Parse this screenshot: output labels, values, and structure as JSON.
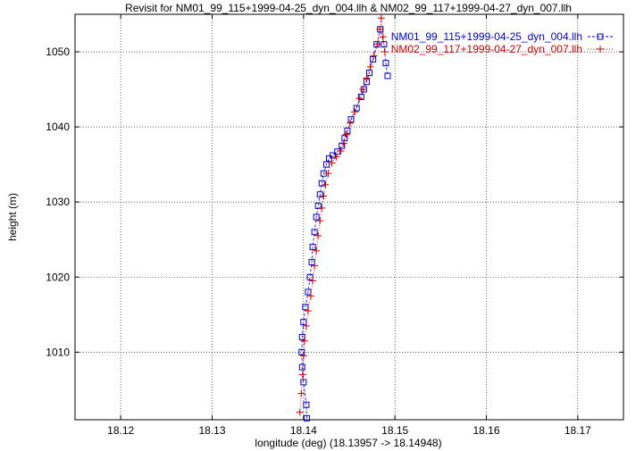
{
  "chart_data": {
    "type": "scatter",
    "title": "Revisit for NM01_99_115+1999-04-25_dyn_004.llh & NM02_99_117+1999-04-27_dyn_007.llh",
    "xlabel": "longitude (deg) (18.13957 -> 18.14948)",
    "ylabel": "height (m)",
    "xlim": [
      18.115,
      18.175
    ],
    "ylim": [
      1001,
      1055
    ],
    "x_ticks": [
      "18.12",
      "18.13",
      "18.14",
      "18.15",
      "18.16",
      "18.17"
    ],
    "y_ticks": [
      "1010",
      "1020",
      "1030",
      "1040",
      "1050"
    ],
    "grid": true,
    "legend_position": "top-right",
    "series": [
      {
        "name": "NM01_99_115+1999-04-25_dyn_004.llh",
        "color": "#0000cc",
        "marker": "square",
        "x": [
          18.14035,
          18.1403,
          18.14,
          18.13985,
          18.1398,
          18.13985,
          18.14,
          18.1402,
          18.1405,
          18.1407,
          18.1409,
          18.141,
          18.1412,
          18.1414,
          18.1416,
          18.1418,
          18.142,
          18.1422,
          18.1425,
          18.1428,
          18.1432,
          18.1437,
          18.1442,
          18.1445,
          18.1448,
          18.1452,
          18.1458,
          18.1463,
          18.1466,
          18.1469,
          18.1472,
          18.1476,
          18.148,
          18.1484,
          18.1488,
          18.149,
          18.1492
        ],
        "y": [
          1001.2,
          1003,
          1006,
          1008,
          1010,
          1012,
          1014,
          1016,
          1018,
          1020,
          1022,
          1024,
          1026,
          1028,
          1029.5,
          1031,
          1032.5,
          1033.8,
          1035,
          1035.8,
          1036.2,
          1036.7,
          1037.5,
          1038.5,
          1039.5,
          1041,
          1042.5,
          1044,
          1045,
          1046,
          1047.2,
          1049,
          1051,
          1053,
          1051,
          1048.5,
          1046.8
        ]
      },
      {
        "name": "NM02_99_117+1999-04-27_dyn_007.llh",
        "color": "#cc0000",
        "marker": "plus",
        "x": [
          18.1396,
          18.13975,
          18.1399,
          18.14,
          18.1401,
          18.1403,
          18.1405,
          18.1408,
          18.141,
          18.1412,
          18.1414,
          18.1416,
          18.1418,
          18.142,
          18.1422,
          18.1424,
          18.1427,
          18.1431,
          18.1436,
          18.1441,
          18.1444,
          18.1447,
          18.1451,
          18.1456,
          18.1461,
          18.1465,
          18.1469,
          18.1473,
          18.1477,
          18.1481,
          18.14835,
          18.1485,
          18.1487,
          18.1489
        ],
        "y": [
          1002,
          1004.5,
          1007,
          1009.5,
          1011.5,
          1013.5,
          1015.5,
          1017.5,
          1019.5,
          1021.5,
          1023.5,
          1025.5,
          1027.5,
          1029.2,
          1030.8,
          1032.3,
          1033.8,
          1035.2,
          1036,
          1036.8,
          1037.8,
          1039,
          1040.5,
          1042,
          1043.8,
          1045,
          1046.5,
          1048,
          1049.5,
          1051,
          1053,
          1054.5,
          1052,
          1050
        ]
      }
    ]
  }
}
